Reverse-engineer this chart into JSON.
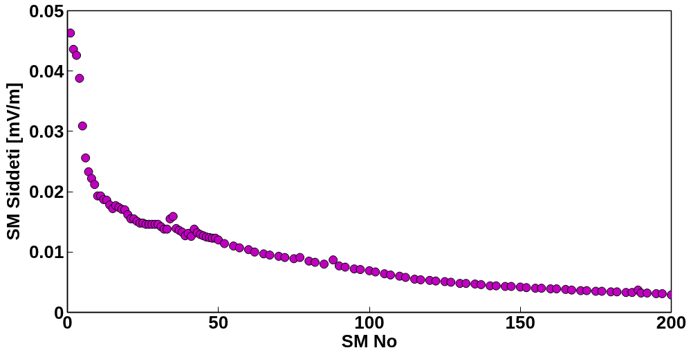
{
  "chart_data": {
    "type": "scatter",
    "xlabel": "SM No",
    "ylabel": "SM Siddeti [mV/m]",
    "x": [
      1,
      2,
      3,
      4,
      5,
      6,
      7,
      8,
      9,
      10,
      11,
      12,
      13,
      14,
      15,
      16,
      17,
      18,
      19,
      20,
      21,
      22,
      23,
      24,
      25,
      26,
      27,
      28,
      29,
      30,
      31,
      32,
      33,
      34,
      35,
      36,
      37,
      38,
      39,
      40,
      41,
      42,
      43,
      44,
      45,
      46,
      47,
      48,
      49,
      50,
      52,
      55,
      57,
      60,
      62,
      65,
      67,
      70,
      72,
      75,
      77,
      80,
      82,
      85,
      88,
      90,
      92,
      95,
      97,
      100,
      102,
      105,
      107,
      110,
      112,
      115,
      117,
      120,
      122,
      125,
      127,
      130,
      132,
      135,
      137,
      140,
      142,
      145,
      147,
      150,
      152,
      155,
      157,
      160,
      162,
      165,
      167,
      170,
      172,
      175,
      177,
      180,
      182,
      185,
      187,
      189,
      190,
      192,
      195,
      197,
      200
    ],
    "series": [
      {
        "color": "#bf00bf",
        "values": [
          0.0463,
          0.0436,
          0.0426,
          0.0388,
          0.0309,
          0.0256,
          0.0233,
          0.0222,
          0.0212,
          0.0193,
          0.0193,
          0.0187,
          0.0186,
          0.0178,
          0.0172,
          0.0177,
          0.0174,
          0.0171,
          0.017,
          0.0162,
          0.0155,
          0.0155,
          0.0151,
          0.0148,
          0.0148,
          0.0146,
          0.0146,
          0.0146,
          0.0146,
          0.0146,
          0.0142,
          0.0138,
          0.0138,
          0.0155,
          0.0159,
          0.0139,
          0.0136,
          0.0133,
          0.0127,
          0.0131,
          0.0126,
          0.0138,
          0.0132,
          0.0129,
          0.0127,
          0.0125,
          0.0124,
          0.0123,
          0.0123,
          0.012,
          0.0114,
          0.011,
          0.0107,
          0.0104,
          0.01,
          0.0097,
          0.0095,
          0.0093,
          0.0091,
          0.0089,
          0.0091,
          0.0085,
          0.0083,
          0.008,
          0.0087,
          0.0077,
          0.0075,
          0.0072,
          0.0071,
          0.0069,
          0.0067,
          0.0064,
          0.0062,
          0.006,
          0.0058,
          0.0055,
          0.0054,
          0.0053,
          0.0052,
          0.0051,
          0.005,
          0.0048,
          0.0048,
          0.0047,
          0.0046,
          0.0044,
          0.0044,
          0.0043,
          0.0043,
          0.0042,
          0.0041,
          0.004,
          0.004,
          0.0039,
          0.0039,
          0.0038,
          0.0037,
          0.0036,
          0.0036,
          0.0035,
          0.0035,
          0.0034,
          0.0034,
          0.0033,
          0.0033,
          0.0037,
          0.0032,
          0.0032,
          0.0031,
          0.0031,
          0.0029
        ]
      }
    ],
    "xlim": [
      0,
      200
    ],
    "xticks": [
      0,
      50,
      100,
      150,
      200
    ],
    "ylim": [
      0,
      0.05
    ],
    "yticks": [
      0,
      0.01,
      0.02,
      0.03,
      0.04,
      0.05
    ],
    "grid": false,
    "marker": "circle"
  }
}
